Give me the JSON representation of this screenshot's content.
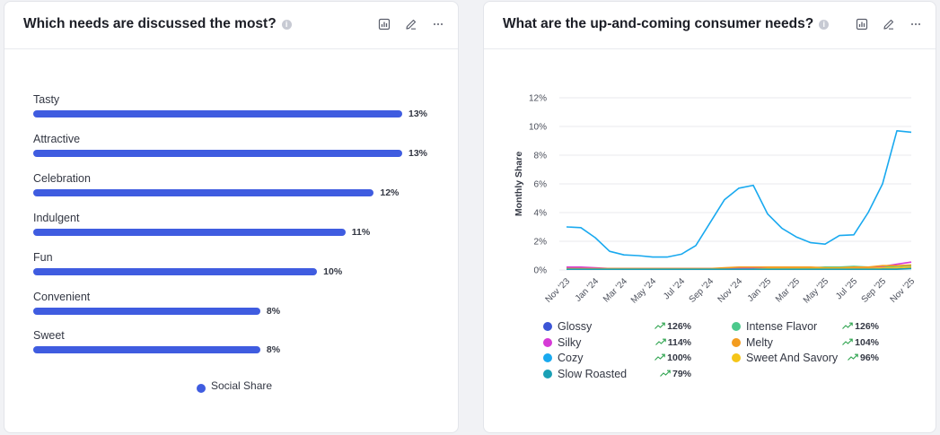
{
  "colors": {
    "bar": "#3f5ce0",
    "grid": "#e8e9ee",
    "trend_up": "#2ea44f"
  },
  "left_card": {
    "title": "Which needs are discussed the most?",
    "info_icon": "i",
    "legend_label": "Social Share"
  },
  "right_card": {
    "title": "What are the up-and-coming consumer needs?",
    "info_icon": "i"
  },
  "chart_data": [
    {
      "type": "bar",
      "orientation": "horizontal",
      "title": "Which needs are discussed the most?",
      "series_name": "Social Share",
      "categories": [
        "Tasty",
        "Attractive",
        "Celebration",
        "Indulgent",
        "Fun",
        "Convenient",
        "Sweet"
      ],
      "values": [
        13,
        13,
        12,
        11,
        10,
        8,
        8
      ],
      "value_labels": [
        "13%",
        "13%",
        "12%",
        "11%",
        "10%",
        "8%",
        "8%"
      ],
      "max": 13
    },
    {
      "type": "line",
      "title": "What are the up-and-coming consumer needs?",
      "ylabel": "Monthly Share",
      "ylim": [
        0,
        12
      ],
      "yticks": [
        "0%",
        "2%",
        "4%",
        "6%",
        "8%",
        "10%",
        "12%"
      ],
      "x_ticks": [
        "Nov '23",
        "Jan '24",
        "Mar '24",
        "May '24",
        "Jul '24",
        "Sep '24",
        "Nov '24",
        "Jan '25",
        "Mar '25",
        "May '25",
        "Jul '25",
        "Sep '25",
        "Nov '25"
      ],
      "series": [
        {
          "name": "Glossy",
          "color": "#3c55d6",
          "growth": "126%",
          "values": [
            0.1,
            0.1,
            0.1,
            0.1,
            0.1,
            0.1,
            0.1,
            0.1,
            0.1,
            0.1,
            0.1,
            0.1,
            0.1,
            0.1,
            0.1,
            0.1,
            0.1,
            0.1,
            0.1,
            0.1,
            0.1,
            0.1,
            0.1,
            0.1,
            0.15
          ]
        },
        {
          "name": "Intense Flavor",
          "color": "#4cc98c",
          "growth": "126%",
          "values": [
            0.1,
            0.1,
            0.1,
            0.1,
            0.1,
            0.1,
            0.1,
            0.1,
            0.1,
            0.1,
            0.1,
            0.1,
            0.1,
            0.1,
            0.1,
            0.1,
            0.1,
            0.15,
            0.2,
            0.2,
            0.25,
            0.2,
            0.2,
            0.25,
            0.3
          ]
        },
        {
          "name": "Silky",
          "color": "#d63ad6",
          "growth": "114%",
          "values": [
            0.2,
            0.2,
            0.15,
            0.1,
            0.1,
            0.1,
            0.1,
            0.1,
            0.1,
            0.1,
            0.1,
            0.1,
            0.1,
            0.15,
            0.15,
            0.15,
            0.1,
            0.1,
            0.1,
            0.1,
            0.1,
            0.15,
            0.25,
            0.4,
            0.55
          ]
        },
        {
          "name": "Melty",
          "color": "#f39c1f",
          "growth": "104%",
          "values": [
            0.1,
            0.1,
            0.1,
            0.1,
            0.1,
            0.1,
            0.1,
            0.1,
            0.1,
            0.1,
            0.1,
            0.15,
            0.2,
            0.2,
            0.2,
            0.2,
            0.2,
            0.2,
            0.15,
            0.15,
            0.2,
            0.2,
            0.3,
            0.3,
            0.35
          ]
        },
        {
          "name": "Cozy",
          "color": "#19a9ef",
          "growth": "100%",
          "values": [
            3.0,
            2.95,
            2.25,
            1.3,
            1.05,
            1.0,
            0.9,
            0.9,
            1.1,
            1.7,
            3.3,
            4.9,
            5.7,
            5.9,
            3.9,
            2.9,
            2.3,
            1.9,
            1.8,
            2.4,
            2.45,
            4.0,
            6.0,
            9.7,
            9.6
          ]
        },
        {
          "name": "Sweet And Savory",
          "color": "#f5c518",
          "growth": "96%",
          "values": [
            0.05,
            0.05,
            0.05,
            0.05,
            0.05,
            0.05,
            0.05,
            0.05,
            0.05,
            0.05,
            0.05,
            0.05,
            0.05,
            0.05,
            0.1,
            0.1,
            0.1,
            0.1,
            0.1,
            0.1,
            0.1,
            0.1,
            0.15,
            0.15,
            0.2
          ]
        },
        {
          "name": "Slow Roasted",
          "color": "#1aa0b5",
          "growth": "79%",
          "values": [
            0.05,
            0.05,
            0.05,
            0.05,
            0.05,
            0.05,
            0.05,
            0.05,
            0.05,
            0.05,
            0.05,
            0.05,
            0.05,
            0.05,
            0.05,
            0.05,
            0.05,
            0.05,
            0.05,
            0.05,
            0.05,
            0.05,
            0.05,
            0.05,
            0.1
          ]
        }
      ]
    }
  ]
}
